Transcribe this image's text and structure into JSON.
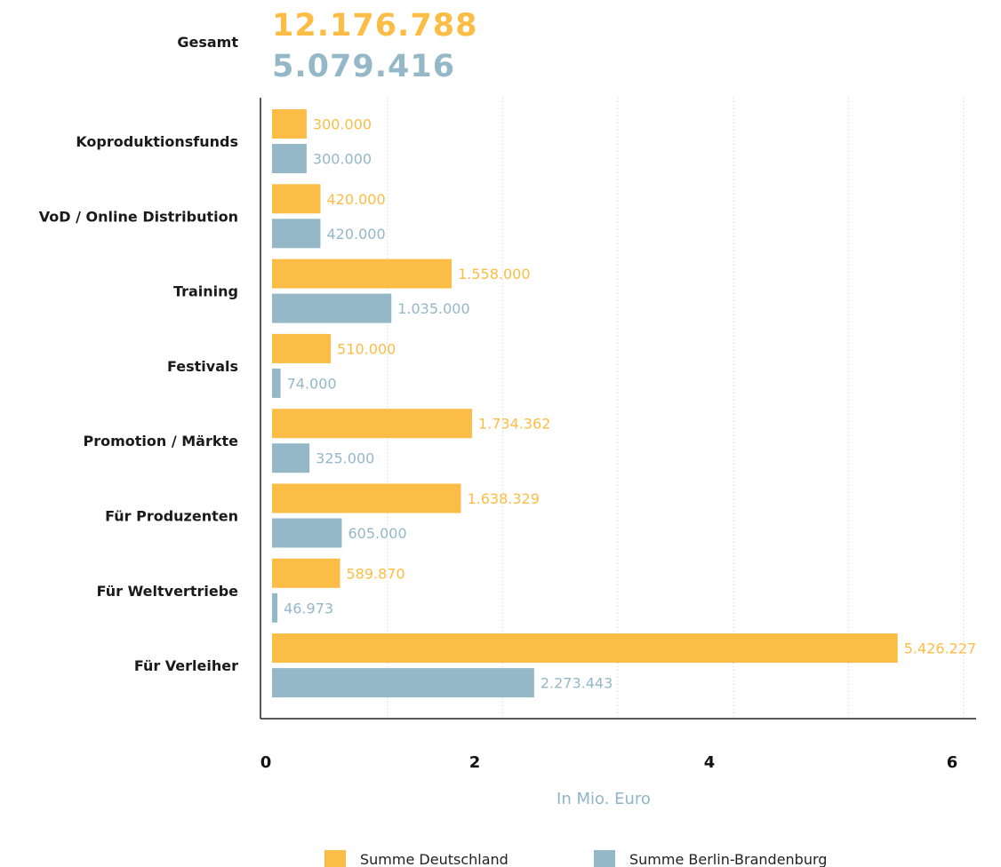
{
  "chart_data": {
    "type": "bar",
    "orientation": "horizontal",
    "categories": [
      "Koproduktionsfunds",
      "VoD / Online Distribution",
      "Training",
      "Festivals",
      "Promotion / Märkte",
      "Für Produzenten",
      "Für Weltvertriebe",
      "Für Verleiher"
    ],
    "series": [
      {
        "name": "Summe Deutschland",
        "color": "#fbbd45",
        "values": [
          300000,
          420000,
          1558000,
          510000,
          1734362,
          1638329,
          589870,
          5426227
        ],
        "labels": [
          "300.000",
          "420.000",
          "1.558.000",
          "510.000",
          "1.734.362",
          "1.638.329",
          "589.870",
          "5.426.227"
        ]
      },
      {
        "name": "Summe Berlin-Brandenburg",
        "color": "#94b8c8",
        "values": [
          300000,
          420000,
          1035000,
          74000,
          325000,
          605000,
          46973,
          2273443
        ],
        "labels": [
          "300.000",
          "420.000",
          "1.035.000",
          "74.000",
          "325.000",
          "605.000",
          "46.973",
          "2.273.443"
        ]
      }
    ],
    "totals": {
      "label": "Gesamt",
      "values": [
        "12.176.788",
        "5.079.416"
      ]
    },
    "xlabel": "In Mio. Euro",
    "xlim": [
      0,
      6
    ],
    "xticks": [
      "0",
      "2",
      "4",
      "6"
    ],
    "grid": true,
    "legend_position": "bottom"
  }
}
